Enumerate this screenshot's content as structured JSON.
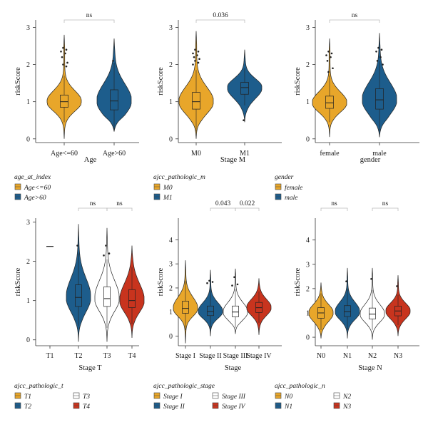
{
  "colors": {
    "orange": "#e8a62a",
    "blue": "#1d5d8c",
    "white": "#ffffff",
    "red": "#c8341e",
    "outline": "#222222"
  },
  "chart_data": [
    {
      "type": "violin",
      "ylabel": "riskScore",
      "xlabel": "Age",
      "ylim": [
        -0.1,
        3.2
      ],
      "yticks": [
        0,
        1,
        2,
        3
      ],
      "categories": [
        "Age<=60",
        "Age>60"
      ],
      "series": [
        {
          "category": "Age<=60",
          "color": "orange",
          "min": 0.0,
          "q1": 0.85,
          "median": 1.0,
          "q3": 1.18,
          "max": 2.8,
          "whisker_low": 0.45,
          "whisker_high": 1.7,
          "outliers": [
            2.45,
            2.4,
            2.35,
            2.3,
            2.2,
            2.05,
            2.0,
            1.95
          ]
        },
        {
          "category": "Age>60",
          "color": "blue",
          "min": 0.2,
          "q1": 0.78,
          "median": 1.02,
          "q3": 1.32,
          "max": 2.7,
          "whisker_low": 0.25,
          "whisker_high": 2.05,
          "outliers": [
            2.1
          ]
        }
      ],
      "comparisons": [
        {
          "from": "Age<=60",
          "to": "Age>60",
          "label": "ns"
        }
      ],
      "legend": {
        "title": "age_at_index",
        "entries": [
          {
            "label": "Age<=60",
            "color": "orange"
          },
          {
            "label": "Age>60",
            "color": "blue"
          }
        ]
      }
    },
    {
      "type": "violin",
      "ylabel": "riskScore",
      "xlabel": "Stage M",
      "ylim": [
        -0.1,
        3.2
      ],
      "yticks": [
        0,
        1,
        2,
        3
      ],
      "categories": [
        "M0",
        "M1"
      ],
      "series": [
        {
          "category": "M0",
          "color": "orange",
          "min": 0.0,
          "q1": 0.8,
          "median": 1.0,
          "q3": 1.25,
          "max": 2.9,
          "whisker_low": 0.2,
          "whisker_high": 1.85,
          "outliers": [
            2.4,
            2.35,
            2.3,
            2.25,
            2.2,
            2.15,
            2.1,
            2.05,
            2.0
          ]
        },
        {
          "category": "M1",
          "color": "blue",
          "min": 0.45,
          "q1": 1.2,
          "median": 1.38,
          "q3": 1.52,
          "max": 2.4,
          "whisker_low": 0.9,
          "whisker_high": 1.9,
          "outliers": [
            0.5
          ]
        }
      ],
      "comparisons": [
        {
          "from": "M0",
          "to": "M1",
          "label": "0.036"
        }
      ],
      "legend": {
        "title": "ajcc_pathologic_m",
        "entries": [
          {
            "label": "M0",
            "color": "orange"
          },
          {
            "label": "M1",
            "color": "blue"
          }
        ]
      }
    },
    {
      "type": "violin",
      "ylabel": "riskScore",
      "xlabel": "gender",
      "ylim": [
        -0.1,
        3.2
      ],
      "yticks": [
        0,
        1,
        2,
        3
      ],
      "categories": [
        "female",
        "male"
      ],
      "series": [
        {
          "category": "female",
          "color": "orange",
          "min": 0.05,
          "q1": 0.82,
          "median": 0.97,
          "q3": 1.15,
          "max": 2.7,
          "whisker_low": 0.45,
          "whisker_high": 1.7,
          "outliers": [
            2.35,
            2.3,
            2.25,
            2.2,
            2.1,
            1.9,
            1.8
          ]
        },
        {
          "category": "male",
          "color": "blue",
          "min": 0.05,
          "q1": 0.8,
          "median": 1.05,
          "q3": 1.35,
          "max": 2.85,
          "whisker_low": 0.2,
          "whisker_high": 2.1,
          "outliers": [
            2.45,
            2.4,
            2.35,
            2.2,
            2.1,
            2.0
          ]
        }
      ],
      "comparisons": [
        {
          "from": "female",
          "to": "male",
          "label": "ns"
        }
      ],
      "legend": {
        "title": "gender",
        "entries": [
          {
            "label": "female",
            "color": "orange"
          },
          {
            "label": "male",
            "color": "blue"
          }
        ]
      }
    },
    {
      "type": "violin",
      "ylabel": "riskScore",
      "xlabel": "Stage T",
      "ylim": [
        -0.15,
        3.1
      ],
      "yticks": [
        0,
        1,
        2,
        3
      ],
      "categories": [
        "T1",
        "T2",
        "T3",
        "T4"
      ],
      "series": [
        {
          "category": "T1",
          "color": "orange",
          "single_value": 2.38
        },
        {
          "category": "T2",
          "color": "blue",
          "min": -0.05,
          "q1": 0.85,
          "median": 1.08,
          "q3": 1.4,
          "max": 2.95,
          "whisker_low": 0.35,
          "whisker_high": 2.2,
          "outliers": [
            2.4
          ]
        },
        {
          "category": "T3",
          "color": "white",
          "min": -0.05,
          "q1": 0.85,
          "median": 1.05,
          "q3": 1.35,
          "max": 2.85,
          "whisker_low": 0.3,
          "whisker_high": 2.05,
          "outliers": [
            2.4,
            2.2,
            2.15
          ]
        },
        {
          "category": "T4",
          "color": "red",
          "min": 0.05,
          "q1": 0.82,
          "median": 1.0,
          "q3": 1.28,
          "max": 2.4,
          "whisker_low": 0.4,
          "whisker_high": 1.85,
          "outliers": []
        }
      ],
      "comparisons": [
        {
          "from": "T2",
          "to": "T3",
          "label": "ns"
        },
        {
          "from": "T3",
          "to": "T4",
          "label": "ns"
        }
      ],
      "legend": {
        "title": "ajcc_pathologic_t",
        "entries": [
          {
            "label": "T1",
            "color": "orange"
          },
          {
            "label": "T3",
            "color": "white"
          },
          {
            "label": "T2",
            "color": "blue"
          },
          {
            "label": "T4",
            "color": "red"
          }
        ]
      }
    },
    {
      "type": "violin",
      "ylabel": "riskScore",
      "xlabel": "Stage",
      "ylim": [
        -0.4,
        4.9
      ],
      "yticks": [
        0,
        1,
        2,
        3,
        4
      ],
      "categories": [
        "Stage I",
        "Stage II",
        "Stage III",
        "Stage IV"
      ],
      "series": [
        {
          "category": "Stage I",
          "color": "orange",
          "min": -0.3,
          "q1": 0.95,
          "median": 1.15,
          "q3": 1.45,
          "max": 3.15,
          "whisker_low": 0.25,
          "whisker_high": 2.3,
          "outliers": []
        },
        {
          "category": "Stage II",
          "color": "blue",
          "min": 0.0,
          "q1": 0.85,
          "median": 1.02,
          "q3": 1.25,
          "max": 2.75,
          "whisker_low": 0.3,
          "whisker_high": 1.95,
          "outliers": [
            2.3,
            2.25,
            2.2
          ]
        },
        {
          "category": "Stage III",
          "color": "white",
          "min": 0.1,
          "q1": 0.8,
          "median": 1.0,
          "q3": 1.25,
          "max": 2.8,
          "whisker_low": 0.35,
          "whisker_high": 1.95,
          "outliers": [
            2.45,
            2.15,
            2.1
          ]
        },
        {
          "category": "Stage IV",
          "color": "red",
          "min": 0.05,
          "q1": 0.98,
          "median": 1.18,
          "q3": 1.4,
          "max": 2.4,
          "whisker_low": 0.55,
          "whisker_high": 1.85,
          "outliers": []
        }
      ],
      "comparisons": [
        {
          "from": "Stage II",
          "to": "Stage III",
          "label": "0.043"
        },
        {
          "from": "Stage III",
          "to": "Stage IV",
          "label": "0.022"
        }
      ],
      "legend": {
        "title": "ajcc_pathologic_stage",
        "entries": [
          {
            "label": "Stage I",
            "color": "orange"
          },
          {
            "label": "Stage III",
            "color": "white"
          },
          {
            "label": "Stage II",
            "color": "blue"
          },
          {
            "label": "Stage IV",
            "color": "red"
          }
        ]
      }
    },
    {
      "type": "violin",
      "ylabel": "riskScore",
      "xlabel": "Stage N",
      "ylim": [
        -0.35,
        4.9
      ],
      "yticks": [
        0,
        1,
        2,
        3,
        4
      ],
      "categories": [
        "N0",
        "N1",
        "N2",
        "N3"
      ],
      "series": [
        {
          "category": "N0",
          "color": "orange",
          "min": -0.05,
          "q1": 0.78,
          "median": 1.0,
          "q3": 1.22,
          "max": 2.25,
          "whisker_low": 0.3,
          "whisker_high": 1.8,
          "outliers": []
        },
        {
          "category": "N1",
          "color": "blue",
          "min": -0.05,
          "q1": 0.85,
          "median": 1.05,
          "q3": 1.3,
          "max": 2.85,
          "whisker_low": 0.3,
          "whisker_high": 2.0,
          "outliers": [
            2.3
          ]
        },
        {
          "category": "N2",
          "color": "white",
          "min": -0.1,
          "q1": 0.75,
          "median": 0.95,
          "q3": 1.2,
          "max": 2.85,
          "whisker_low": 0.3,
          "whisker_high": 1.95,
          "outliers": [
            2.4
          ]
        },
        {
          "category": "N3",
          "color": "red",
          "min": 0.05,
          "q1": 0.88,
          "median": 1.08,
          "q3": 1.28,
          "max": 2.55,
          "whisker_low": 0.5,
          "whisker_high": 1.75,
          "outliers": [
            2.1
          ]
        }
      ],
      "comparisons": [
        {
          "from": "N0",
          "to": "N1",
          "label": "ns"
        },
        {
          "from": "N2",
          "to": "N3",
          "label": "ns"
        }
      ],
      "legend": {
        "title": "ajcc_pathologic_n",
        "entries": [
          {
            "label": "N0",
            "color": "orange"
          },
          {
            "label": "N2",
            "color": "white"
          },
          {
            "label": "N1",
            "color": "blue"
          },
          {
            "label": "N3",
            "color": "red"
          }
        ]
      }
    }
  ]
}
